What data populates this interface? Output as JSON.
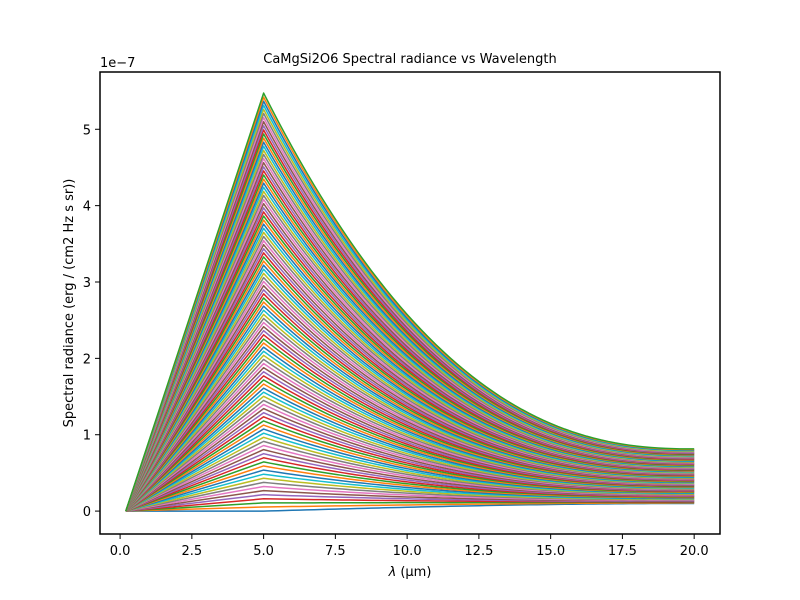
{
  "chart_data": {
    "type": "line",
    "title": "CaMgSi2O6 Spectral radiance vs Wavelength",
    "xlabel_symbol": "λ",
    "xlabel_unit": "(μm)",
    "ylabel": "Spectral radiance (erg / (cm2 Hz s sr))",
    "y_offset_label": "1e−7",
    "xlim": [
      -0.7,
      20.9
    ],
    "ylim": [
      -0.3,
      5.75
    ],
    "y_scale_factor": 1e-07,
    "x_ticks": [
      0.0,
      2.5,
      5.0,
      7.5,
      10.0,
      12.5,
      15.0,
      17.5,
      20.0
    ],
    "x_tick_labels": [
      "0.0",
      "2.5",
      "5.0",
      "7.5",
      "10.0",
      "12.5",
      "15.0",
      "17.5",
      "20.0"
    ],
    "y_ticks": [
      0,
      1,
      2,
      3,
      4,
      5
    ],
    "y_tick_labels": [
      "0",
      "1",
      "2",
      "3",
      "4",
      "5"
    ],
    "grid": false,
    "legend": "none",
    "series_family": {
      "x_start": 0.2,
      "peak_x": 5.0,
      "x_end": 20.0,
      "peak_values": [
        0.0,
        0.054,
        0.107,
        0.161,
        0.215,
        0.268,
        0.322,
        0.376,
        0.43,
        0.483,
        0.537,
        0.591,
        0.644,
        0.698,
        0.752,
        0.805,
        0.859,
        0.913,
        0.966,
        1.02,
        1.074,
        1.127,
        1.181,
        1.235,
        1.288,
        1.342,
        1.396,
        1.449,
        1.503,
        1.557,
        1.61,
        1.664,
        1.718,
        1.771,
        1.825,
        1.879,
        1.932,
        1.986,
        2.04,
        2.093,
        2.147,
        2.201,
        2.254,
        2.308,
        2.362,
        2.415,
        2.469,
        2.523,
        2.576,
        2.63,
        2.684,
        2.737,
        2.791,
        2.845,
        2.898,
        2.952,
        3.006,
        3.059,
        3.113,
        3.167,
        3.22,
        3.274,
        3.328,
        3.381,
        3.435,
        3.489,
        3.542,
        3.596,
        3.65,
        3.703,
        3.757,
        3.811,
        3.864,
        3.918,
        3.972,
        4.025,
        4.079,
        4.133,
        4.186,
        4.24,
        4.294,
        4.347,
        4.401,
        4.455,
        4.508,
        4.562,
        4.616,
        4.669,
        4.723,
        4.777,
        4.83,
        4.884,
        4.938,
        4.991,
        5.045,
        5.099,
        5.152,
        5.206,
        5.26,
        5.313,
        5.367,
        5.421,
        5.474
      ],
      "end_values": [
        0.1,
        0.107,
        0.114,
        0.121,
        0.128,
        0.135,
        0.142,
        0.149,
        0.156,
        0.163,
        0.17,
        0.177,
        0.184,
        0.191,
        0.198,
        0.205,
        0.212,
        0.219,
        0.226,
        0.233,
        0.24,
        0.247,
        0.254,
        0.261,
        0.268,
        0.275,
        0.282,
        0.289,
        0.296,
        0.303,
        0.31,
        0.317,
        0.324,
        0.331,
        0.338,
        0.345,
        0.352,
        0.359,
        0.366,
        0.373,
        0.38,
        0.387,
        0.394,
        0.401,
        0.408,
        0.415,
        0.422,
        0.429,
        0.436,
        0.443,
        0.45,
        0.457,
        0.464,
        0.471,
        0.478,
        0.485,
        0.492,
        0.499,
        0.506,
        0.513,
        0.52,
        0.527,
        0.534,
        0.541,
        0.548,
        0.555,
        0.562,
        0.569,
        0.576,
        0.583,
        0.59,
        0.597,
        0.604,
        0.611,
        0.618,
        0.625,
        0.632,
        0.639,
        0.646,
        0.653,
        0.66,
        0.667,
        0.674,
        0.681,
        0.688,
        0.695,
        0.702,
        0.709,
        0.716,
        0.723,
        0.73,
        0.737,
        0.744,
        0.751,
        0.758,
        0.765,
        0.772,
        0.779,
        0.786,
        0.793,
        0.8,
        0.807,
        0.814
      ],
      "colors": [
        "#1f77b4",
        "#ff7f0e",
        "#2ca02c",
        "#d62728",
        "#9467bd",
        "#8c564b",
        "#e377c2",
        "#7f7f7f",
        "#bcbd22",
        "#17becf"
      ]
    }
  }
}
